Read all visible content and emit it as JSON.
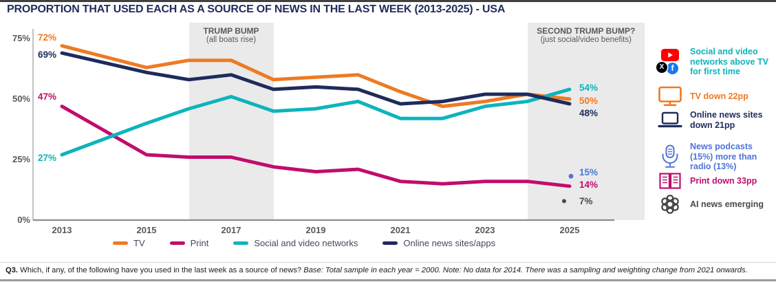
{
  "title": "PROPORTION THAT USED EACH AS A SOURCE OF NEWS IN THE LAST WEEK (2013-2025) - USA",
  "colors": {
    "tv": "#EE7A25",
    "print": "#C00D6D",
    "social": "#0DB4BC",
    "online": "#1F2B5C",
    "podcasts": "#4F74D8",
    "ai": "#4A4A4A",
    "band": "#EAEAEA",
    "title_navy": "#1F2B5C",
    "axis_gray": "#595959",
    "youtube_red": "#FF0000",
    "facebook_blue": "#1877F2"
  },
  "chart_data": {
    "type": "line",
    "x": [
      2013,
      2015,
      2016,
      2017,
      2018,
      2019,
      2020,
      2021,
      2022,
      2023,
      2024,
      2025
    ],
    "x_ticks": [
      "2013",
      "2015",
      "2017",
      "2019",
      "2021",
      "2023",
      "2025"
    ],
    "y_ticks": [
      "75%",
      "50%",
      "25%",
      "0%"
    ],
    "ylim": [
      0,
      78
    ],
    "grid": false,
    "note": "No data for 2014",
    "series": [
      {
        "name": "TV",
        "color_key": "tv",
        "values": [
          72,
          63,
          66,
          66,
          58,
          59,
          60,
          53,
          47,
          49,
          52,
          50
        ]
      },
      {
        "name": "Print",
        "color_key": "print",
        "values": [
          47,
          27,
          26,
          26,
          22,
          20,
          21,
          16,
          15,
          16,
          16,
          14
        ]
      },
      {
        "name": "Social and video networks",
        "color_key": "social",
        "values": [
          27,
          40,
          46,
          51,
          45,
          46,
          49,
          42,
          42,
          47,
          49,
          54
        ]
      },
      {
        "name": "Online news sites/apps",
        "color_key": "online",
        "values": [
          69,
          61,
          58,
          60,
          54,
          55,
          54,
          48,
          49,
          52,
          52,
          48
        ]
      }
    ],
    "point_markers": [
      {
        "label": "15%",
        "value": 15,
        "year": 2025,
        "color_key": "podcasts",
        "series": "News podcasts"
      },
      {
        "label": "7%",
        "value": 7,
        "year": 2025,
        "color_key": "ai",
        "series": "AI news"
      }
    ],
    "start_labels": [
      {
        "text": "72%",
        "value": 72,
        "color_key": "tv"
      },
      {
        "text": "69%",
        "value": 69,
        "color_key": "online"
      },
      {
        "text": "47%",
        "value": 47,
        "color_key": "print"
      },
      {
        "text": "27%",
        "value": 27,
        "color_key": "social"
      }
    ],
    "end_labels": [
      {
        "text": "54%",
        "value": 54,
        "color_key": "social"
      },
      {
        "text": "50%",
        "value": 50,
        "color_key": "tv"
      },
      {
        "text": "48%",
        "value": 48,
        "color_key": "online"
      },
      {
        "text": "15%",
        "value": 15,
        "color_key": "podcasts"
      },
      {
        "text": "14%",
        "value": 14,
        "color_key": "print"
      },
      {
        "text": "7%",
        "value": 7,
        "color_key": "ai"
      }
    ],
    "annotations": [
      {
        "title": "TRUMP BUMP",
        "subtitle": "(all boats rise)",
        "x_from": 2016,
        "x_to": 2018
      },
      {
        "title": "SECOND TRUMP BUMP?",
        "subtitle": "(just social/video benefits)",
        "x_from": 2024,
        "x_to": null
      }
    ]
  },
  "legend": [
    {
      "label": "TV",
      "color_key": "tv"
    },
    {
      "label": "Print",
      "color_key": "print"
    },
    {
      "label": "Social and video networks",
      "color_key": "social"
    },
    {
      "label": "Online news sites/apps",
      "color_key": "online"
    }
  ],
  "sidebar": {
    "items": [
      {
        "icon": "social-platforms",
        "text": "Social and video networks above TV for first time",
        "color_key": "social"
      },
      {
        "icon": "tv",
        "text": "TV down 22pp",
        "color_key": "tv"
      },
      {
        "icon": "laptop",
        "text": "Online news sites down 21pp",
        "color_key": "online"
      },
      {
        "icon": "microphone",
        "text": "News podcasts (15%) more than radio (13%)",
        "color_key": "podcasts"
      },
      {
        "icon": "print",
        "text": "Print down 33pp",
        "color_key": "print"
      },
      {
        "icon": "openai",
        "text": "AI news emerging",
        "color_key": "ai"
      }
    ]
  },
  "footer": {
    "q_label": "Q3.",
    "question": "Which, if any, of the following have you used in the last week as a source of news?",
    "note": "Base: Total sample in each year = 2000. Note: No data for 2014. There was a sampling and weighting change from 2021 onwards."
  }
}
